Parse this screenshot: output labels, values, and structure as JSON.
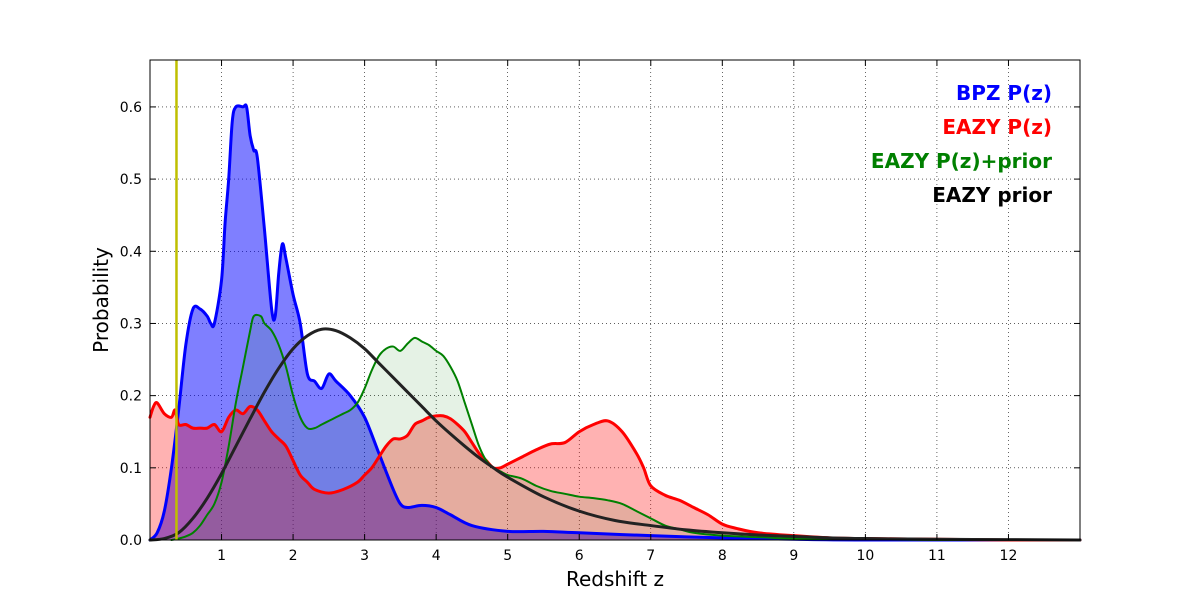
{
  "chart_data": {
    "type": "area",
    "title": "",
    "xlabel": "Redshift z",
    "ylabel": "Probability",
    "xlim": [
      0,
      13
    ],
    "ylim": [
      0,
      0.665
    ],
    "xticks": [
      1,
      2,
      3,
      4,
      5,
      6,
      7,
      8,
      9,
      10,
      11,
      12
    ],
    "xtick_labels": [
      "1",
      "2",
      "3",
      "4",
      "5",
      "6",
      "7",
      "8",
      "9",
      "10",
      "11",
      "12"
    ],
    "yticks": [
      0.0,
      0.1,
      0.2,
      0.3,
      0.4,
      0.5,
      0.6
    ],
    "ytick_labels": [
      "0.0",
      "0.1",
      "0.2",
      "0.3",
      "0.4",
      "0.5",
      "0.6"
    ],
    "grid": true,
    "legend": {
      "placement": "top-right"
    },
    "vertical_line": {
      "x": 0.37,
      "color": "#bfbf00"
    },
    "series": [
      {
        "name": "BPZ P(z)",
        "color": "#0000ff",
        "fill": "#0000ff",
        "fill_opacity": 0.5,
        "line_width": 3,
        "x": [
          0.0,
          0.1,
          0.2,
          0.3,
          0.4,
          0.5,
          0.6,
          0.7,
          0.8,
          0.85,
          0.9,
          1.0,
          1.05,
          1.1,
          1.15,
          1.2,
          1.3,
          1.35,
          1.4,
          1.45,
          1.5,
          1.6,
          1.7,
          1.75,
          1.8,
          1.85,
          1.9,
          2.0,
          2.1,
          2.2,
          2.3,
          2.4,
          2.5,
          2.6,
          2.8,
          3.0,
          3.2,
          3.4,
          3.5,
          3.6,
          3.8,
          4.0,
          4.2,
          4.5,
          5.0,
          5.5,
          6.0,
          7.0,
          8.0,
          9.0,
          10.0,
          13.0
        ],
        "y": [
          0.0,
          0.01,
          0.04,
          0.1,
          0.18,
          0.27,
          0.32,
          0.32,
          0.31,
          0.3,
          0.3,
          0.36,
          0.44,
          0.5,
          0.58,
          0.6,
          0.6,
          0.6,
          0.56,
          0.54,
          0.53,
          0.43,
          0.32,
          0.31,
          0.37,
          0.41,
          0.39,
          0.34,
          0.3,
          0.23,
          0.22,
          0.21,
          0.23,
          0.22,
          0.2,
          0.17,
          0.12,
          0.07,
          0.05,
          0.045,
          0.048,
          0.045,
          0.035,
          0.02,
          0.012,
          0.012,
          0.01,
          0.006,
          0.003,
          0.001,
          0.0,
          0.0
        ]
      },
      {
        "name": "EAZY P(z)",
        "color": "#ff0000",
        "fill": "#ff0000",
        "fill_opacity": 0.3,
        "line_width": 3,
        "x": [
          0.0,
          0.05,
          0.1,
          0.2,
          0.3,
          0.35,
          0.4,
          0.5,
          0.6,
          0.7,
          0.8,
          0.9,
          1.0,
          1.1,
          1.2,
          1.3,
          1.4,
          1.5,
          1.6,
          1.7,
          1.8,
          1.9,
          2.0,
          2.1,
          2.2,
          2.3,
          2.5,
          2.7,
          2.9,
          3.0,
          3.1,
          3.2,
          3.3,
          3.4,
          3.5,
          3.6,
          3.7,
          3.8,
          3.9,
          4.0,
          4.1,
          4.2,
          4.3,
          4.4,
          4.5,
          4.6,
          4.7,
          4.8,
          4.9,
          5.0,
          5.2,
          5.4,
          5.6,
          5.8,
          6.0,
          6.2,
          6.4,
          6.6,
          6.8,
          6.9,
          7.0,
          7.2,
          7.4,
          7.6,
          7.8,
          8.0,
          8.2,
          8.5,
          9.0,
          9.5,
          10.0,
          11.0,
          12.0,
          13.0
        ],
        "y": [
          0.17,
          0.185,
          0.19,
          0.175,
          0.17,
          0.18,
          0.16,
          0.16,
          0.155,
          0.155,
          0.155,
          0.16,
          0.15,
          0.17,
          0.18,
          0.175,
          0.185,
          0.18,
          0.165,
          0.15,
          0.14,
          0.13,
          0.11,
          0.09,
          0.08,
          0.07,
          0.065,
          0.07,
          0.08,
          0.09,
          0.1,
          0.115,
          0.13,
          0.14,
          0.14,
          0.145,
          0.16,
          0.165,
          0.17,
          0.172,
          0.172,
          0.168,
          0.16,
          0.15,
          0.135,
          0.12,
          0.11,
          0.1,
          0.1,
          0.105,
          0.115,
          0.125,
          0.133,
          0.135,
          0.15,
          0.16,
          0.165,
          0.15,
          0.12,
          0.1,
          0.075,
          0.062,
          0.055,
          0.045,
          0.035,
          0.022,
          0.016,
          0.01,
          0.006,
          0.003,
          0.002,
          0.001,
          0.0,
          0.0
        ]
      },
      {
        "name": "EAZY P(z)+prior",
        "color": "#008000",
        "fill": "#008000",
        "fill_opacity": 0.1,
        "line_width": 2,
        "x": [
          0.3,
          0.4,
          0.5,
          0.6,
          0.7,
          0.8,
          0.9,
          1.0,
          1.1,
          1.2,
          1.3,
          1.4,
          1.45,
          1.55,
          1.6,
          1.7,
          1.8,
          1.9,
          2.0,
          2.1,
          2.2,
          2.3,
          2.4,
          2.5,
          2.6,
          2.7,
          2.8,
          2.9,
          3.0,
          3.1,
          3.2,
          3.3,
          3.4,
          3.5,
          3.6,
          3.7,
          3.8,
          3.9,
          4.0,
          4.1,
          4.2,
          4.3,
          4.4,
          4.5,
          4.6,
          4.7,
          4.8,
          4.9,
          5.0,
          5.2,
          5.4,
          5.6,
          5.8,
          6.0,
          6.2,
          6.4,
          6.6,
          6.8,
          7.0,
          7.2,
          7.4,
          7.6,
          8.0,
          8.5,
          9.0,
          10.0,
          11.0,
          12.0,
          13.0
        ],
        "y": [
          0.0,
          0.002,
          0.005,
          0.01,
          0.02,
          0.035,
          0.05,
          0.08,
          0.13,
          0.19,
          0.24,
          0.29,
          0.31,
          0.31,
          0.3,
          0.29,
          0.27,
          0.24,
          0.2,
          0.17,
          0.155,
          0.155,
          0.16,
          0.165,
          0.17,
          0.175,
          0.18,
          0.19,
          0.21,
          0.235,
          0.255,
          0.265,
          0.268,
          0.262,
          0.272,
          0.28,
          0.275,
          0.27,
          0.262,
          0.255,
          0.24,
          0.22,
          0.19,
          0.16,
          0.13,
          0.11,
          0.1,
          0.095,
          0.09,
          0.085,
          0.075,
          0.068,
          0.064,
          0.06,
          0.058,
          0.055,
          0.05,
          0.04,
          0.03,
          0.02,
          0.015,
          0.01,
          0.006,
          0.004,
          0.002,
          0.001,
          0.0,
          0.0,
          0.0
        ]
      },
      {
        "name": "EAZY prior",
        "color": "#222222",
        "fill": null,
        "line_width": 3,
        "x": [
          0.0,
          0.2,
          0.4,
          0.6,
          0.8,
          1.0,
          1.2,
          1.4,
          1.6,
          1.8,
          2.0,
          2.2,
          2.4,
          2.6,
          2.8,
          3.0,
          3.2,
          3.4,
          3.6,
          3.8,
          4.0,
          4.2,
          4.4,
          4.6,
          4.8,
          5.0,
          5.5,
          6.0,
          6.5,
          7.0,
          7.5,
          8.0,
          8.5,
          9.0,
          9.5,
          10.0,
          11.0,
          12.0,
          13.0
        ],
        "y": [
          0.0,
          0.002,
          0.01,
          0.03,
          0.058,
          0.092,
          0.13,
          0.168,
          0.205,
          0.238,
          0.265,
          0.283,
          0.292,
          0.29,
          0.28,
          0.265,
          0.245,
          0.225,
          0.205,
          0.185,
          0.165,
          0.147,
          0.13,
          0.114,
          0.1,
          0.087,
          0.06,
          0.04,
          0.027,
          0.02,
          0.014,
          0.01,
          0.007,
          0.005,
          0.003,
          0.002,
          0.001,
          0.0005,
          0.0
        ]
      }
    ]
  }
}
